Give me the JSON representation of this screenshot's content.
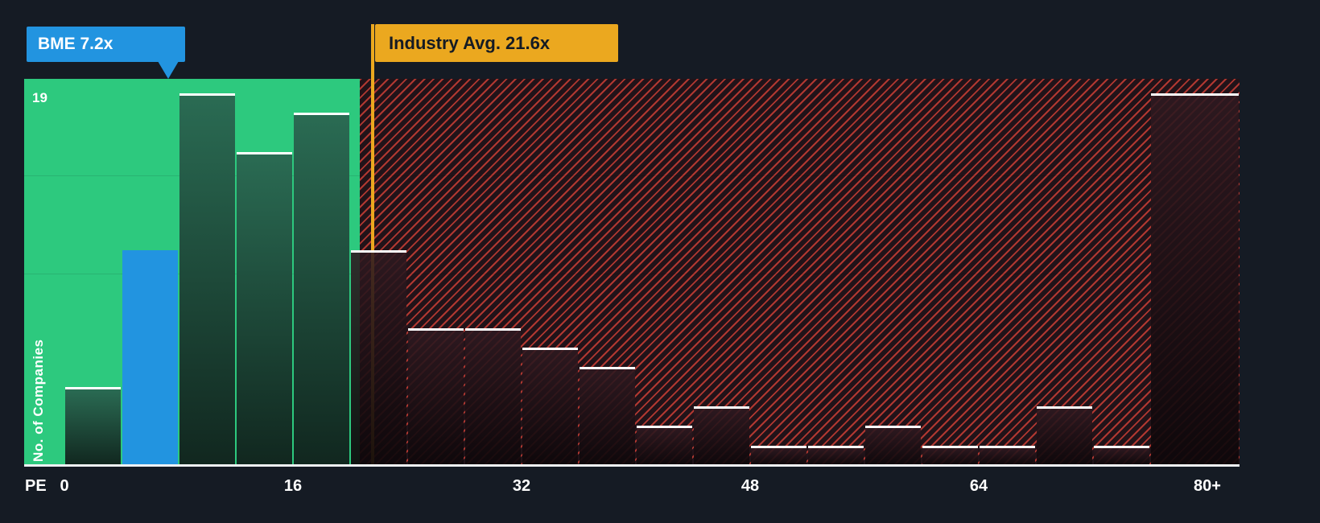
{
  "colors": {
    "background": "#151b24",
    "undervalued_zone_green": "#2dc97e",
    "company_blue": "#2294e0",
    "industry_yellow": "#eba81f",
    "hatch_red": "#e8463a",
    "bar_cap_white": "#ffffff"
  },
  "callouts": {
    "company": {
      "label": "BME 7.2x"
    },
    "industry": {
      "label": "Industry Avg. 21.6x"
    }
  },
  "axis": {
    "x_title": "PE",
    "y_title": "No. of Companies",
    "y_max_label": "19"
  },
  "chart_data": {
    "type": "bar",
    "xlabel": "PE",
    "ylabel": "No. of Companies",
    "ylim": [
      0,
      19.7
    ],
    "grid": "subtle-horizontal",
    "legend": "none",
    "company_marker": {
      "name": "BME",
      "pe": 7.2
    },
    "industry_avg_pe": 21.6,
    "bin_width": 4,
    "x_ticks": [
      {
        "label": "0",
        "pe": 0
      },
      {
        "label": "16",
        "pe": 16
      },
      {
        "label": "32",
        "pe": 32
      },
      {
        "label": "48",
        "pe": 48
      },
      {
        "label": "64",
        "pe": 64
      },
      {
        "label": "80+",
        "pe": 80
      }
    ],
    "bins": [
      {
        "start": 0,
        "end": 4,
        "count": 4,
        "zone": "green"
      },
      {
        "start": 4,
        "end": 8,
        "count": 11,
        "zone": "green",
        "company": true
      },
      {
        "start": 8,
        "end": 12,
        "count": 19,
        "zone": "green"
      },
      {
        "start": 12,
        "end": 16,
        "count": 16,
        "zone": "green"
      },
      {
        "start": 16,
        "end": 20,
        "count": 18,
        "zone": "green"
      },
      {
        "start": 20,
        "end": 24,
        "count": 11,
        "zone": "red"
      },
      {
        "start": 24,
        "end": 28,
        "count": 7,
        "zone": "red"
      },
      {
        "start": 28,
        "end": 32,
        "count": 7,
        "zone": "red"
      },
      {
        "start": 32,
        "end": 36,
        "count": 6,
        "zone": "red"
      },
      {
        "start": 36,
        "end": 40,
        "count": 5,
        "zone": "red"
      },
      {
        "start": 40,
        "end": 44,
        "count": 2,
        "zone": "red"
      },
      {
        "start": 44,
        "end": 48,
        "count": 3,
        "zone": "red"
      },
      {
        "start": 48,
        "end": 52,
        "count": 1,
        "zone": "red"
      },
      {
        "start": 52,
        "end": 56,
        "count": 1,
        "zone": "red"
      },
      {
        "start": 56,
        "end": 60,
        "count": 2,
        "zone": "red"
      },
      {
        "start": 60,
        "end": 64,
        "count": 1,
        "zone": "red"
      },
      {
        "start": 64,
        "end": 68,
        "count": 1,
        "zone": "red"
      },
      {
        "start": 68,
        "end": 72,
        "count": 3,
        "zone": "red"
      },
      {
        "start": 72,
        "end": 76,
        "count": 1,
        "zone": "red"
      },
      {
        "start": 76,
        "end": 80,
        "count": 19,
        "zone": "red",
        "open_ended": true,
        "label": "80+"
      }
    ]
  }
}
